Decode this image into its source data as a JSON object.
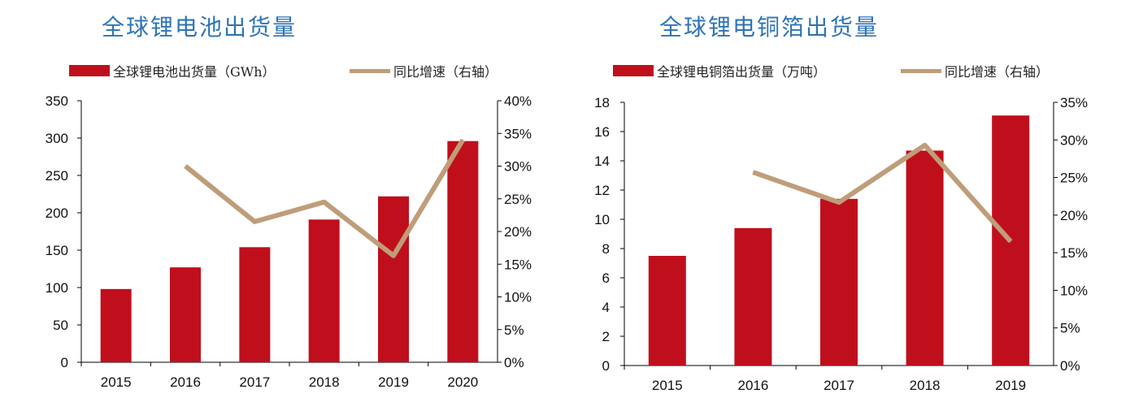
{
  "chart_data": [
    {
      "type": "bar",
      "title": "全球锂电池出货量",
      "categories": [
        "2015",
        "2016",
        "2017",
        "2018",
        "2019",
        "2020"
      ],
      "series": [
        {
          "name": "全球锂电池出货量（GWh）",
          "type": "bar",
          "axis": "left",
          "values": [
            98,
            127,
            154,
            191,
            222,
            296
          ]
        },
        {
          "name": "同比增速（右轴）",
          "type": "line",
          "axis": "right",
          "values": [
            null,
            0.3,
            0.215,
            0.245,
            0.163,
            0.34
          ]
        }
      ],
      "y_left": {
        "min": 0,
        "max": 350,
        "ticks": [
          "0",
          "50",
          "100",
          "150",
          "200",
          "250",
          "300",
          "350"
        ]
      },
      "y_right": {
        "min": 0,
        "max": 0.4,
        "ticks": [
          "0%",
          "5%",
          "10%",
          "15%",
          "20%",
          "25%",
          "30%",
          "35%",
          "40%"
        ]
      },
      "legend_position": "top",
      "grid": false
    },
    {
      "type": "bar",
      "title": "全球锂电铜箔出货量",
      "categories": [
        "2015",
        "2016",
        "2017",
        "2018",
        "2019"
      ],
      "series": [
        {
          "name": "全球锂电铜箔出货量（万吨）",
          "type": "bar",
          "axis": "left",
          "values": [
            7.5,
            9.4,
            11.4,
            14.7,
            17.1
          ]
        },
        {
          "name": "同比增速（右轴）",
          "type": "line",
          "axis": "right",
          "values": [
            null,
            0.257,
            0.217,
            0.293,
            0.165
          ]
        }
      ],
      "y_left": {
        "min": 0,
        "max": 18,
        "ticks": [
          "0",
          "2",
          "4",
          "6",
          "8",
          "10",
          "12",
          "14",
          "16",
          "18"
        ]
      },
      "y_right": {
        "min": 0,
        "max": 0.35,
        "ticks": [
          "0%",
          "5%",
          "10%",
          "15%",
          "20%",
          "25%",
          "30%",
          "35%"
        ]
      },
      "legend_position": "top",
      "grid": false
    }
  ],
  "colors": {
    "bar": "#c00f1c",
    "line": "#bf9d7a",
    "title": "#2e74b5",
    "axis": "#000000"
  }
}
